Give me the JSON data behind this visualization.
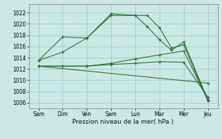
{
  "background_color": "#cce8e4",
  "grid_color": "#99cccc",
  "line_color": "#2d6a2d",
  "xlabel": "Pression niveau de la mer( hPa )",
  "ylim": [
    1005.0,
    1023.5
  ],
  "yticks": [
    1006,
    1008,
    1010,
    1012,
    1014,
    1016,
    1018,
    1020,
    1022
  ],
  "x_labels": [
    "Sam",
    "Dim",
    "Ven",
    "Sam",
    "Lun",
    "Mar",
    "Mer",
    "Jeu"
  ],
  "x_positions": [
    0,
    1,
    2,
    3,
    4,
    5,
    6,
    7
  ],
  "xlim": [
    -0.4,
    7.4
  ],
  "lines": [
    {
      "x": [
        0,
        1,
        2,
        3,
        4,
        4.5,
        5,
        5.5,
        6,
        7
      ],
      "y": [
        1013.5,
        1017.7,
        1017.5,
        1021.8,
        1021.5,
        1021.5,
        1019.3,
        1015.7,
        1016.3,
        1006.3
      ]
    },
    {
      "x": [
        0,
        1,
        2,
        3,
        4,
        4.5,
        5,
        5.5,
        6,
        7
      ],
      "y": [
        1013.5,
        1015.0,
        1017.5,
        1021.5,
        1021.5,
        1019.5,
        1017.2,
        1015.3,
        1016.8,
        1006.5
      ]
    },
    {
      "x": [
        0,
        1,
        2,
        3,
        4,
        5,
        6,
        7
      ],
      "y": [
        1012.5,
        1012.5,
        1012.5,
        1013.0,
        1013.8,
        1014.5,
        1015.2,
        1006.5
      ]
    },
    {
      "x": [
        0,
        1,
        2,
        3,
        4,
        5,
        6,
        7
      ],
      "y": [
        1012.5,
        1012.5,
        1012.5,
        1012.8,
        1013.0,
        1013.3,
        1013.2,
        1007.0
      ]
    },
    {
      "x": [
        0,
        7
      ],
      "y": [
        1012.5,
        1009.5
      ]
    }
  ]
}
